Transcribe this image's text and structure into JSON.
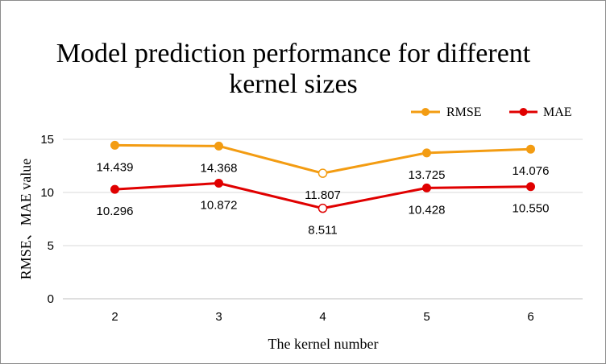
{
  "chart_data": {
    "type": "line",
    "title_line1": "Model prediction performance for different",
    "title_line2": "kernel sizes",
    "xlabel": "The kernel number",
    "ylabel": "RMSE、MAE value",
    "categories": [
      "2",
      "3",
      "4",
      "5",
      "6"
    ],
    "ylim": [
      0,
      15
    ],
    "yticks": [
      0,
      5,
      10,
      15
    ],
    "grid": true,
    "legend_position": "top-right",
    "series": [
      {
        "name": "RMSE",
        "color": "#F39C12",
        "values": [
          14.439,
          14.368,
          11.807,
          13.725,
          14.076
        ],
        "labels": [
          "14.439",
          "14.368",
          "11.807",
          "13.725",
          "14.076"
        ],
        "label_position": "below"
      },
      {
        "name": "MAE",
        "color": "#E00000",
        "values": [
          10.296,
          10.872,
          8.511,
          10.428,
          10.55
        ],
        "labels": [
          "10.296",
          "10.872",
          "8.511",
          "10.428",
          "10.550"
        ],
        "label_position": "below"
      }
    ],
    "hollow_marker_index": 2
  }
}
